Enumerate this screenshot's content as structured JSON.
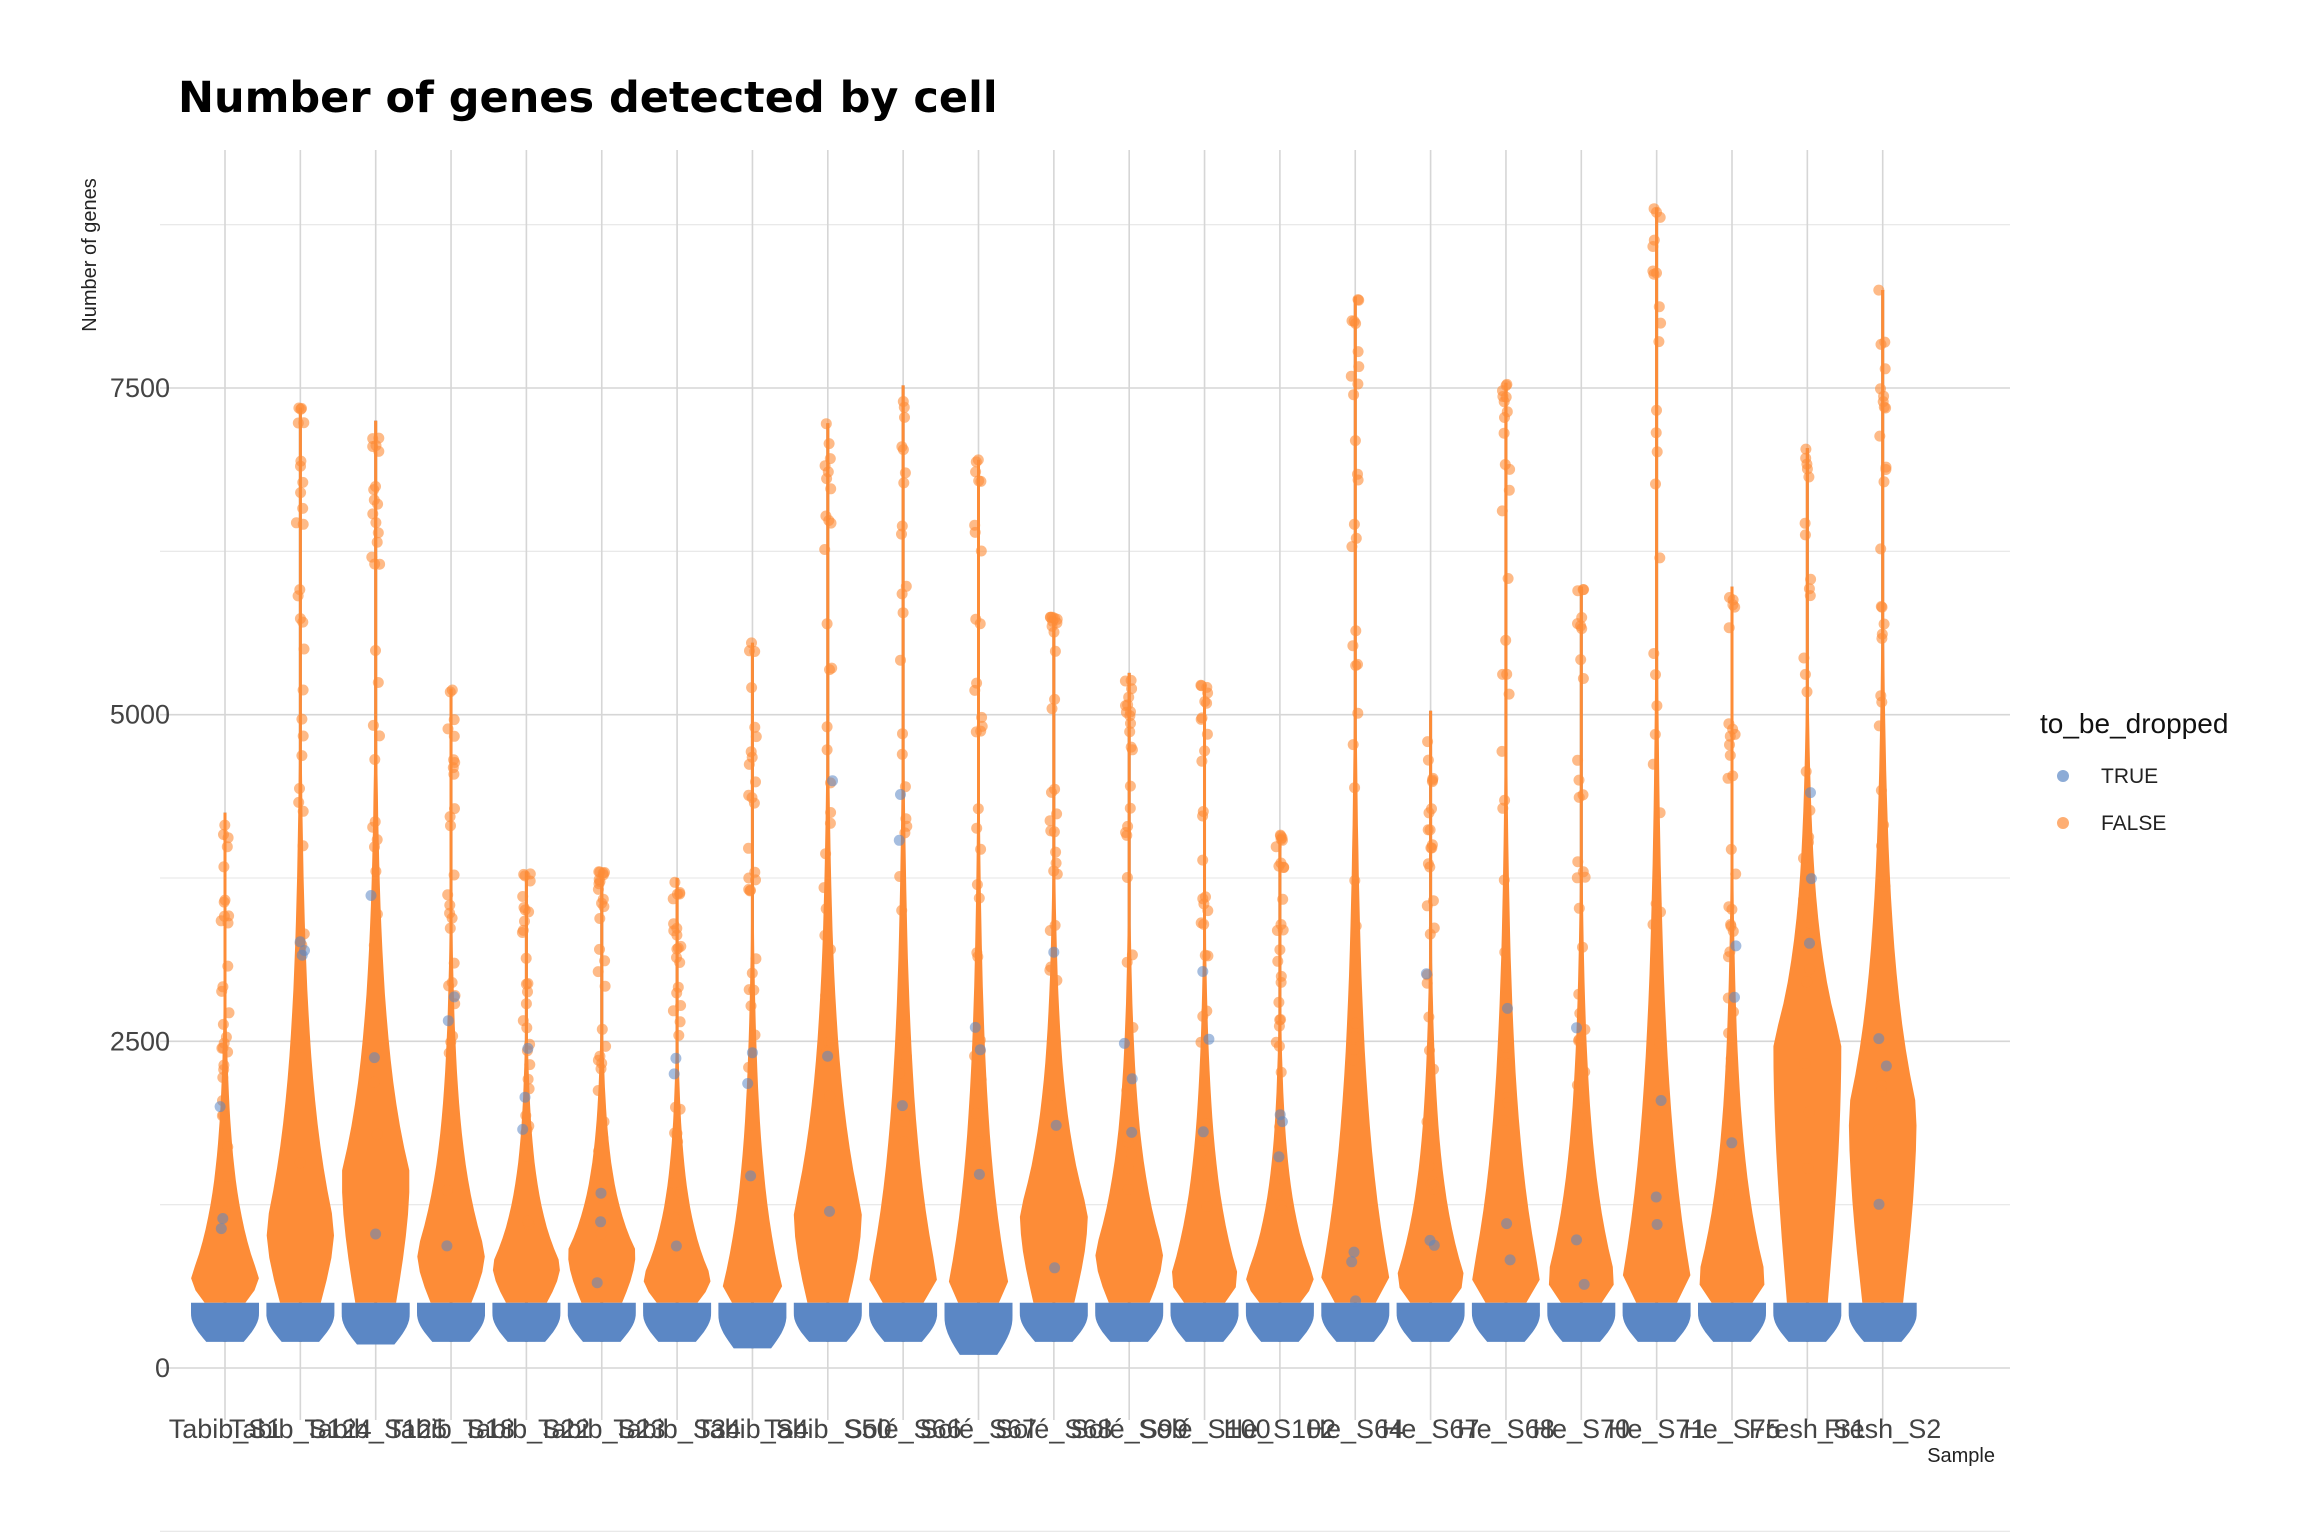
{
  "colors": {
    "true": "#5b87c5",
    "false": "#fd8c37",
    "spine": "#8a8a8a"
  },
  "chart_data": {
    "type": "violin",
    "title": "Number of genes detected by cell",
    "xlabel": "Sample",
    "ylabel": "Number of genes",
    "ylim": [
      -600,
      9300
    ],
    "yticks": [
      0,
      2500,
      5000,
      7500
    ],
    "grid": true,
    "legend": {
      "title": "to_be_dropped",
      "position": "right",
      "entries": [
        {
          "label": "TRUE",
          "color": "#5b87c5"
        },
        {
          "label": "FALSE",
          "color": "#fd8c37"
        }
      ]
    },
    "threshold": 500,
    "categories": [
      "Tabib_S1",
      "Tabib_S124",
      "Tabib_S125",
      "Tabib_S18",
      "Tabib_S22",
      "Tabib_S23",
      "Tabib_S34",
      "Tabib_S4",
      "Tabib_S50",
      "Solé_S66",
      "Solé_S67",
      "Solé_S68",
      "Solé_S99",
      "Solé_S100",
      "He_S102",
      "He_S64",
      "He_S67",
      "He_S68",
      "He_S70",
      "He_S71",
      "He_S75",
      "Fresh_S1",
      "Fresh_S2"
    ],
    "series": [
      {
        "name": "TRUE",
        "min": [
          200,
          200,
          180,
          200,
          200,
          200,
          200,
          150,
          200,
          200,
          100,
          200,
          200,
          200,
          200,
          200,
          200,
          200,
          200,
          200,
          200,
          200,
          200
        ]
      },
      {
        "name": "FALSE",
        "min": [
          500,
          500,
          500,
          500,
          500,
          500,
          500,
          500,
          500,
          500,
          500,
          500,
          500,
          500,
          500,
          500,
          500,
          500,
          500,
          500,
          500,
          500,
          500
        ],
        "mode": [
          700,
          1100,
          1500,
          900,
          800,
          900,
          700,
          500,
          1200,
          700,
          500,
          1200,
          900,
          700,
          700,
          700,
          700,
          700,
          700,
          700,
          700,
          2500,
          2000
        ],
        "max": [
          4250,
          7350,
          7250,
          5200,
          3800,
          3800,
          3750,
          5550,
          7230,
          7520,
          6950,
          5750,
          5320,
          5230,
          4080,
          8200,
          5030,
          7540,
          5980,
          8880,
          5980,
          7040,
          8250
        ]
      }
    ]
  }
}
